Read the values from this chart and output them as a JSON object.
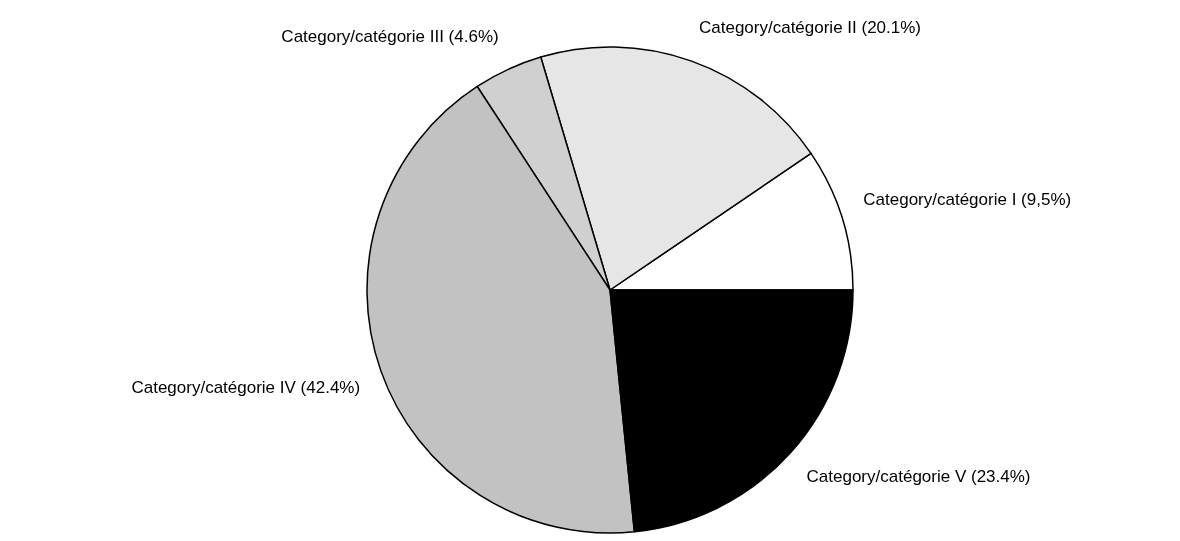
{
  "chart_data": {
    "type": "pie",
    "categories": [
      "Category/catégorie I",
      "Category/catégorie II",
      "Category/catégorie III",
      "Category/catégorie IV",
      "Category/catégorie V"
    ],
    "values": [
      9.5,
      20.1,
      4.6,
      42.4,
      23.4
    ],
    "value_labels": [
      "(9,5%)",
      "(20.1%)",
      "(4.6%)",
      "(42.4%)",
      "(23.4%)"
    ],
    "colors": [
      "#ffffff",
      "#e6e6e6",
      "#d0d0d0",
      "#c2c2c2",
      "#000000"
    ]
  }
}
